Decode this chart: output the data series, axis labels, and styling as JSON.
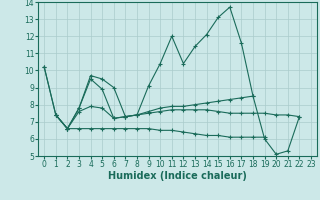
{
  "xlabel": "Humidex (Indice chaleur)",
  "x": [
    0,
    1,
    2,
    3,
    4,
    5,
    6,
    7,
    8,
    9,
    10,
    11,
    12,
    13,
    14,
    15,
    16,
    17,
    18,
    19,
    20,
    21,
    22,
    23
  ],
  "series": [
    [
      10.2,
      7.4,
      6.6,
      7.8,
      9.7,
      9.5,
      9.0,
      7.3,
      7.4,
      9.1,
      10.4,
      12.0,
      10.4,
      11.4,
      12.1,
      13.1,
      13.7,
      11.6,
      8.5,
      6.0,
      5.1,
      5.3,
      7.3,
      null
    ],
    [
      10.2,
      7.4,
      6.6,
      7.8,
      9.5,
      8.9,
      7.2,
      7.3,
      7.4,
      7.6,
      7.8,
      7.9,
      7.9,
      8.0,
      8.1,
      8.2,
      8.3,
      8.4,
      8.5,
      null,
      null,
      null,
      null,
      null
    ],
    [
      null,
      7.4,
      6.6,
      7.6,
      7.9,
      7.8,
      7.2,
      7.3,
      7.4,
      7.5,
      7.6,
      7.7,
      7.7,
      7.7,
      7.7,
      7.6,
      7.5,
      7.5,
      7.5,
      7.5,
      7.4,
      7.4,
      7.3,
      null
    ],
    [
      null,
      7.4,
      6.6,
      6.6,
      6.6,
      6.6,
      6.6,
      6.6,
      6.6,
      6.6,
      6.5,
      6.5,
      6.4,
      6.3,
      6.2,
      6.2,
      6.1,
      6.1,
      6.1,
      6.1,
      null,
      null,
      null,
      null
    ]
  ],
  "line_color": "#1a6b5a",
  "marker": "+",
  "markersize": 3,
  "linewidth": 0.8,
  "ylim": [
    5,
    14
  ],
  "xlim": [
    -0.5,
    23.5
  ],
  "yticks": [
    5,
    6,
    7,
    8,
    9,
    10,
    11,
    12,
    13,
    14
  ],
  "xticks": [
    0,
    1,
    2,
    3,
    4,
    5,
    6,
    7,
    8,
    9,
    10,
    11,
    12,
    13,
    14,
    15,
    16,
    17,
    18,
    19,
    20,
    21,
    22,
    23
  ],
  "bg_color": "#cce8e8",
  "grid_color": "#aacccc",
  "tick_labelsize": 5.5,
  "xlabel_fontsize": 7.0
}
